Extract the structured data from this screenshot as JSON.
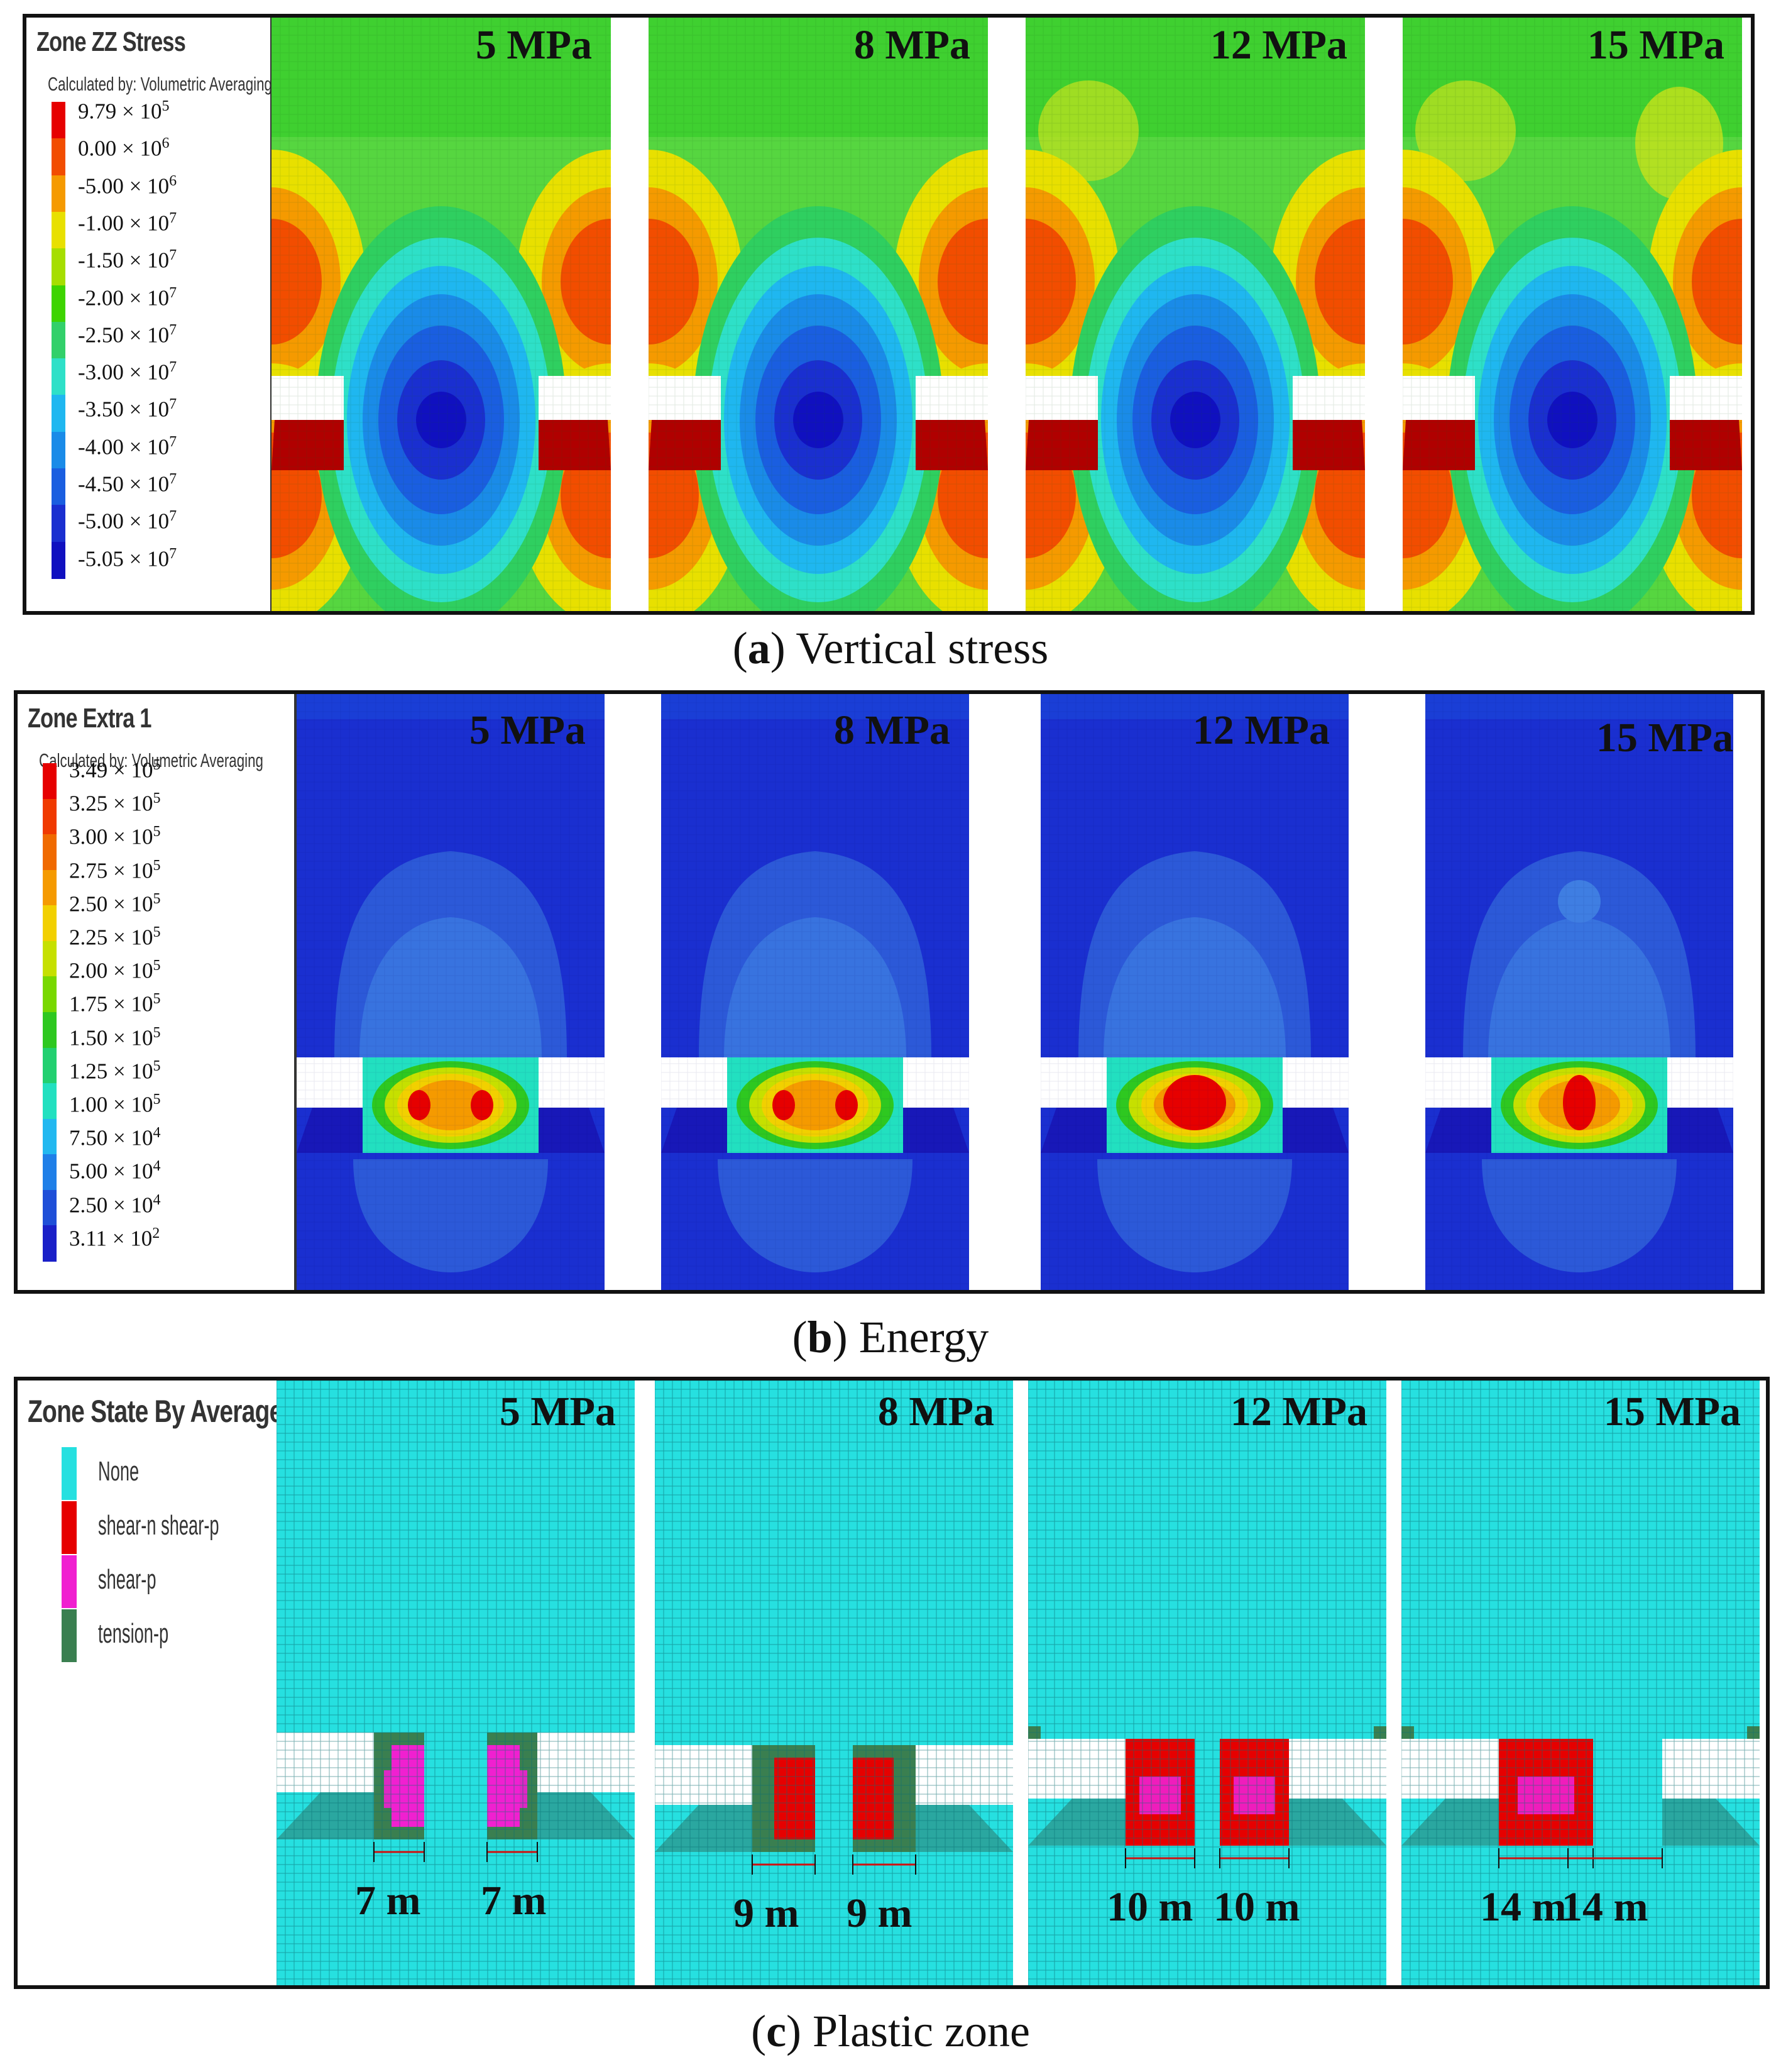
{
  "colors": {
    "stress_scale": [
      "#e60000",
      "#f24d00",
      "#f59a00",
      "#e8e000",
      "#a6de00",
      "#3ed400",
      "#32d06a",
      "#2ee0c8",
      "#1fb7f0",
      "#1a8be8",
      "#1a5ee0",
      "#1a2fd0",
      "#1010c0"
    ],
    "energy_scale": [
      "#e60000",
      "#f03a00",
      "#f06a00",
      "#f59a00",
      "#f2d000",
      "#c6e000",
      "#78d800",
      "#2ec820",
      "#22d070",
      "#22e0c0",
      "#22b8f0",
      "#1f7fe8",
      "#1f4fd8",
      "#1a20c8"
    ],
    "zone_none": "#26e0e0",
    "zone_shear_np": "#e60000",
    "zone_shear_p": "#f020d0",
    "zone_tension_p": "#3a7f50"
  },
  "panel_a": {
    "legend_title": "Zone ZZ Stress",
    "legend_subtitle": "Calculated by: Volumetric Averaging",
    "legend_items": [
      {
        "mant": "9.79 × 10",
        "exp": "5"
      },
      {
        "mant": "0.00 × 10",
        "exp": "6"
      },
      {
        "mant": "-5.00 × 10",
        "exp": "6"
      },
      {
        "mant": "-1.00 × 10",
        "exp": "7"
      },
      {
        "mant": "-1.50 × 10",
        "exp": "7"
      },
      {
        "mant": "-2.00 × 10",
        "exp": "7"
      },
      {
        "mant": "-2.50 × 10",
        "exp": "7"
      },
      {
        "mant": "-3.00 × 10",
        "exp": "7"
      },
      {
        "mant": "-3.50 × 10",
        "exp": "7"
      },
      {
        "mant": "-4.00 × 10",
        "exp": "7"
      },
      {
        "mant": "-4.50 × 10",
        "exp": "7"
      },
      {
        "mant": "-5.00 × 10",
        "exp": "7"
      },
      {
        "mant": "-5.05 × 10",
        "exp": "7"
      }
    ],
    "cases": [
      "5 MPa",
      "8 MPa",
      "12 MPa",
      "15 MPa"
    ],
    "caption_letter": "a",
    "caption_text": "Vertical stress"
  },
  "panel_b": {
    "legend_title": "Zone Extra 1",
    "legend_subtitle": "Calculated by: Volumetric Averaging",
    "legend_items": [
      {
        "mant": "3.49 × 10",
        "exp": "5"
      },
      {
        "mant": "3.25 × 10",
        "exp": "5"
      },
      {
        "mant": "3.00 × 10",
        "exp": "5"
      },
      {
        "mant": "2.75 × 10",
        "exp": "5"
      },
      {
        "mant": "2.50 × 10",
        "exp": "5"
      },
      {
        "mant": "2.25 × 10",
        "exp": "5"
      },
      {
        "mant": "2.00 × 10",
        "exp": "5"
      },
      {
        "mant": "1.75 × 10",
        "exp": "5"
      },
      {
        "mant": "1.50 × 10",
        "exp": "5"
      },
      {
        "mant": "1.25 × 10",
        "exp": "5"
      },
      {
        "mant": "1.00 × 10",
        "exp": "5"
      },
      {
        "mant": "7.50 × 10",
        "exp": "4"
      },
      {
        "mant": "5.00 × 10",
        "exp": "4"
      },
      {
        "mant": "2.50 × 10",
        "exp": "4"
      },
      {
        "mant": "3.11 × 10",
        "exp": "2"
      }
    ],
    "cases": [
      "5 MPa",
      "8 MPa",
      "12 MPa",
      "15 MPa"
    ],
    "caption_letter": "b",
    "caption_text": "Energy"
  },
  "panel_c": {
    "legend_title": "Zone State By Average",
    "legend_items": [
      "None",
      "shear-n shear-p",
      "shear-p",
      "tension-p"
    ],
    "cases": [
      "5 MPa",
      "8 MPa",
      "12 MPa",
      "15 MPa"
    ],
    "widths": [
      {
        "left": "7 m",
        "right": "7 m"
      },
      {
        "left": "9 m",
        "right": "9 m"
      },
      {
        "left": "10 m",
        "right": "10 m"
      },
      {
        "left": "14 m",
        "right": "14 m"
      }
    ],
    "caption_letter": "c",
    "caption_text": "Plastic zone"
  }
}
